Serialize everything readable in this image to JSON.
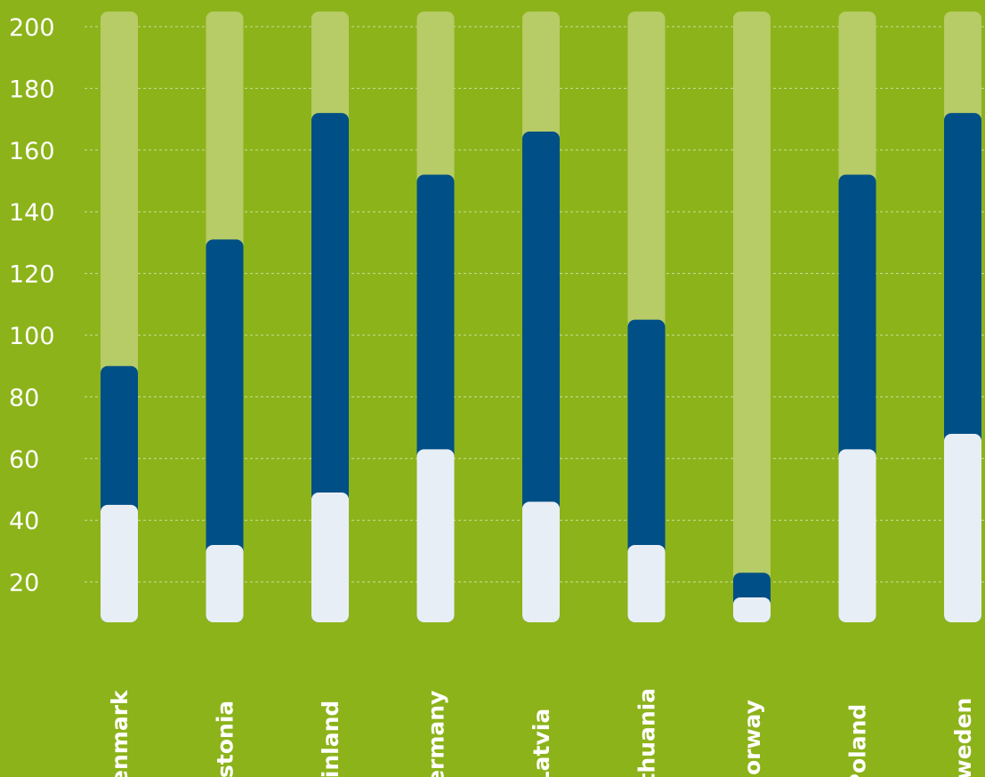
{
  "chart_data": {
    "type": "bar",
    "stacked": true,
    "categories": [
      "Denmark",
      "Estonia",
      "Finland",
      "Germany",
      "Latvia",
      "Lithuania",
      "Norway",
      "Poland",
      "Sweden"
    ],
    "series": [
      {
        "color": "#e8eef6",
        "values": [
          45,
          32,
          49,
          63,
          46,
          32,
          15,
          63,
          68
        ]
      },
      {
        "color": "#004f86",
        "values": [
          45,
          99,
          123,
          89,
          120,
          73,
          8,
          89,
          104
        ]
      }
    ],
    "background_track": {
      "color": "#b7cb66",
      "max": 200
    },
    "ylim": [
      0,
      200
    ],
    "yticks": [
      20,
      40,
      60,
      80,
      100,
      120,
      140,
      160,
      180,
      200
    ],
    "grid": true,
    "legend": "none",
    "title": "",
    "xlabel": "",
    "ylabel": ""
  }
}
